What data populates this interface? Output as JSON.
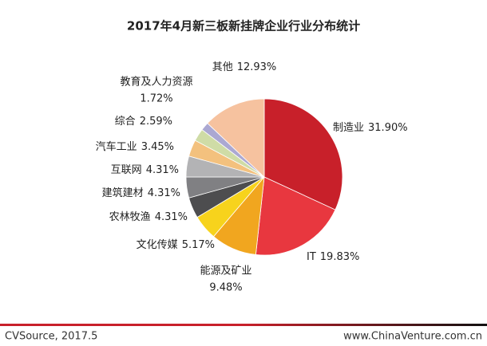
{
  "chart_data": {
    "type": "pie",
    "title": "2017年4月新三板新挂牌企业行业分布统计",
    "categories": [
      "制造业",
      "IT",
      "能源及矿业",
      "文化传媒",
      "农林牧渔",
      "建筑建材",
      "互联网",
      "汽车工业",
      "综合",
      "教育及人力资源",
      "其他"
    ],
    "values": [
      31.9,
      19.83,
      9.48,
      5.17,
      4.31,
      4.31,
      4.31,
      3.45,
      2.59,
      1.72,
      12.93
    ],
    "value_labels": [
      "31.90%",
      "19.83%",
      "9.48%",
      "5.17%",
      "4.31%",
      "4.31%",
      "4.31%",
      "3.45%",
      "2.59%",
      "1.72%",
      "12.93%"
    ],
    "colors": [
      "#c8202a",
      "#e8373f",
      "#f1a61f",
      "#f7d31c",
      "#4d4d4f",
      "#808083",
      "#b3b3b5",
      "#f3c17e",
      "#cfdca6",
      "#aba8d2",
      "#f6c29f"
    ]
  },
  "footer": {
    "source": "CVSource, 2017.5",
    "website": "www.ChinaVenture.com.cn"
  }
}
